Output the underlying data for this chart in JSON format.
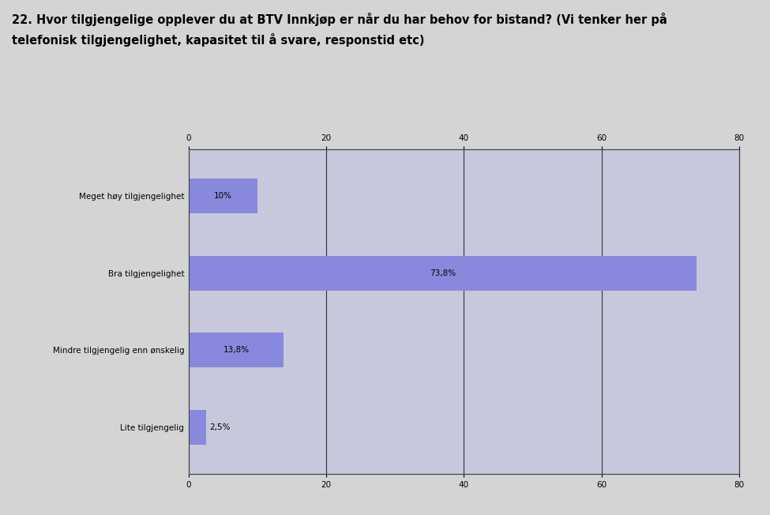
{
  "title_line1": "22. Hvor tilgjengelige opplever du at BTV Innkjøp er når du har behov for bistand? (Vi tenker her på",
  "title_line2": "telefonisk tilgjengelighet, kapasitet til å svare, responstid etc)",
  "categories": [
    "Meget høy tilgjengelighet",
    "Bra tilgjengelighet",
    "Mindre tilgjengelig enn ønskelig",
    "Lite tilgjengelig"
  ],
  "values": [
    10.0,
    73.8,
    13.8,
    2.5
  ],
  "labels": [
    "10%",
    "73,8%",
    "13,8%",
    "2,5%"
  ],
  "bar_color": "#8888dd",
  "background_color": "#d4d4d4",
  "plot_bg_color_top": "#c8c8dc",
  "plot_bg_color_bottom": "#dcdce8",
  "grid_color": "#000000",
  "xlim": [
    0,
    80
  ],
  "xticks": [
    0,
    20,
    40,
    60,
    80
  ],
  "label_fontsize": 7.5,
  "title_fontsize": 10.5,
  "bar_height": 0.45
}
